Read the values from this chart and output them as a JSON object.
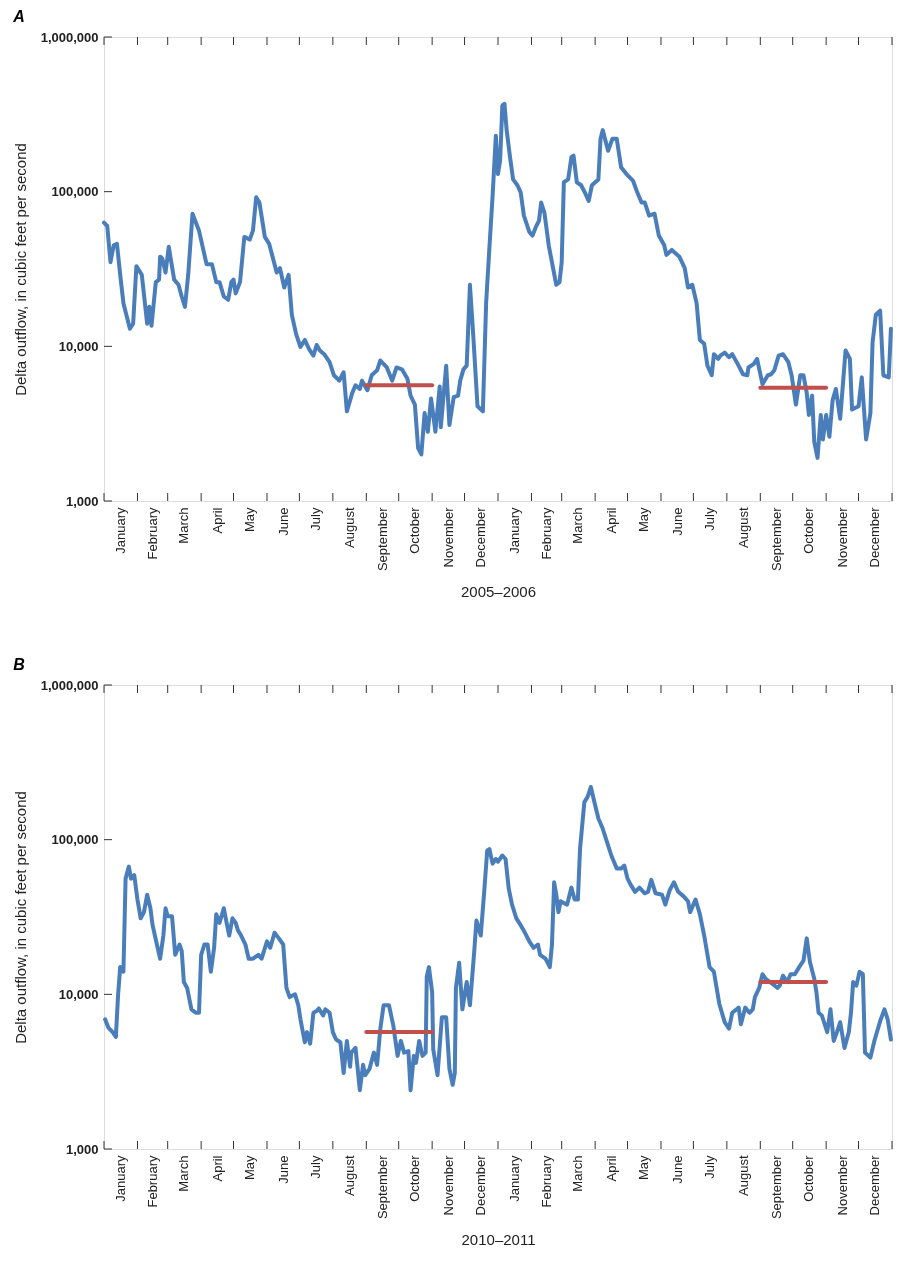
{
  "chart_data": [
    {
      "type": "line",
      "title": "A",
      "xlabel": "2005–2006",
      "ylabel": "Delta outflow, in cubic feet per second",
      "log": true,
      "grid": false,
      "x": [
        "2005-01-01",
        "2005-01-04",
        "2005-01-07",
        "2005-01-10",
        "2005-01-13",
        "2005-01-16",
        "2005-01-19",
        "2005-01-25",
        "2005-01-28",
        "2005-01-31",
        "2005-02-05",
        "2005-02-10",
        "2005-02-12",
        "2005-02-14",
        "2005-02-18",
        "2005-02-21",
        "2005-02-22",
        "2005-02-24",
        "2005-02-27",
        "2005-03-02",
        "2005-03-07",
        "2005-03-11",
        "2005-03-14",
        "2005-03-17",
        "2005-03-20",
        "2005-03-24",
        "2005-03-30",
        "2005-04-06",
        "2005-04-11",
        "2005-04-15",
        "2005-04-18",
        "2005-04-22",
        "2005-04-26",
        "2005-04-29",
        "2005-05-01",
        "2005-05-03",
        "2005-05-07",
        "2005-05-11",
        "2005-05-16",
        "2005-05-19",
        "2005-05-22",
        "2005-05-25",
        "2005-05-30",
        "2005-06-03",
        "2005-06-07",
        "2005-06-10",
        "2005-06-13",
        "2005-06-17",
        "2005-06-21",
        "2005-06-24",
        "2005-06-28",
        "2005-07-02",
        "2005-07-06",
        "2005-07-10",
        "2005-07-14",
        "2005-07-17",
        "2005-07-20",
        "2005-07-24",
        "2005-07-29",
        "2005-08-02",
        "2005-08-07",
        "2005-08-11",
        "2005-08-14",
        "2005-08-19",
        "2005-08-22",
        "2005-08-26",
        "2005-08-28",
        "2005-09-02",
        "2005-09-06",
        "2005-09-11",
        "2005-09-14",
        "2005-09-20",
        "2005-09-25",
        "2005-09-29",
        "2005-10-04",
        "2005-10-09",
        "2005-10-12",
        "2005-10-16",
        "2005-10-19",
        "2005-10-22",
        "2005-10-25",
        "2005-10-28",
        "2005-10-31",
        "2005-11-04",
        "2005-11-08",
        "2005-11-09",
        "2005-11-14",
        "2005-11-17",
        "2005-11-21",
        "2005-11-25",
        "2005-11-27",
        "2005-11-30",
        "2005-12-03",
        "2005-12-06",
        "2005-12-09",
        "2005-12-13",
        "2005-12-18",
        "2005-12-21",
        "2005-12-24",
        "2005-12-27",
        "2005-12-30",
        "2006-01-01",
        "2006-01-03",
        "2006-01-05",
        "2006-01-07",
        "2006-01-09",
        "2006-01-12",
        "2006-01-15",
        "2006-01-19",
        "2006-01-22",
        "2006-01-25",
        "2006-01-30",
        "2006-02-02",
        "2006-02-05",
        "2006-02-08",
        "2006-02-10",
        "2006-02-13",
        "2006-02-17",
        "2006-02-21",
        "2006-02-24",
        "2006-02-27",
        "2006-03-01",
        "2006-03-03",
        "2006-03-07",
        "2006-03-10",
        "2006-03-12",
        "2006-03-15",
        "2006-03-19",
        "2006-03-23",
        "2006-03-26",
        "2006-03-29",
        "2006-04-04",
        "2006-04-06",
        "2006-04-08",
        "2006-04-13",
        "2006-04-17",
        "2006-04-21",
        "2006-04-25",
        "2006-04-30",
        "2006-05-06",
        "2006-05-10",
        "2006-05-14",
        "2006-05-17",
        "2006-05-21",
        "2006-05-26",
        "2006-05-30",
        "2006-06-04",
        "2006-06-06",
        "2006-06-11",
        "2006-06-18",
        "2006-06-23",
        "2006-06-26",
        "2006-06-30",
        "2006-07-04",
        "2006-07-07",
        "2006-07-11",
        "2006-07-14",
        "2006-07-18",
        "2006-07-20",
        "2006-07-24",
        "2006-07-26",
        "2006-07-30",
        "2006-08-03",
        "2006-08-06",
        "2006-08-11",
        "2006-08-16",
        "2006-08-20",
        "2006-08-21",
        "2006-08-26",
        "2006-08-29",
        "2006-09-03",
        "2006-09-08",
        "2006-09-11",
        "2006-09-14",
        "2006-09-18",
        "2006-09-22",
        "2006-09-27",
        "2006-09-30",
        "2006-10-04",
        "2006-10-08",
        "2006-10-11",
        "2006-10-14",
        "2006-10-16",
        "2006-10-19",
        "2006-10-21",
        "2006-10-24",
        "2006-10-27",
        "2006-10-29",
        "2006-11-01",
        "2006-11-04",
        "2006-11-07",
        "2006-11-10",
        "2006-11-14",
        "2006-11-19",
        "2006-11-23",
        "2006-11-25",
        "2006-12-01",
        "2006-12-04",
        "2006-12-08",
        "2006-12-12",
        "2006-12-14",
        "2006-12-17",
        "2006-12-21",
        "2006-12-24",
        "2006-12-29",
        "2006-12-31"
      ],
      "series": [
        {
          "color": "#4a7ebb",
          "values": [
            63000,
            60000,
            35000,
            45000,
            46000,
            29000,
            19000,
            13000,
            14000,
            33000,
            29000,
            14000,
            18000,
            13600,
            26000,
            27000,
            38000,
            37000,
            30000,
            44000,
            27000,
            25000,
            21000,
            18000,
            29000,
            72000,
            56000,
            34000,
            34000,
            26000,
            26000,
            21000,
            20000,
            26000,
            27000,
            22000,
            26000,
            51000,
            49000,
            56000,
            92000,
            85000,
            51000,
            46000,
            36000,
            30000,
            32000,
            24000,
            29000,
            16000,
            12000,
            9900,
            11000,
            9600,
            8700,
            10200,
            9400,
            8900,
            7900,
            6500,
            6000,
            6800,
            3800,
            5000,
            5600,
            5300,
            6000,
            5200,
            6500,
            7000,
            8100,
            7300,
            6000,
            7300,
            7100,
            6200,
            4800,
            4200,
            2200,
            2000,
            3700,
            2800,
            4600,
            2800,
            5500,
            3000,
            7500,
            3100,
            4700,
            4800,
            6000,
            7100,
            7500,
            25000,
            12000,
            4100,
            3800,
            19000,
            43000,
            94000,
            230000,
            130000,
            160000,
            360000,
            370000,
            250000,
            170000,
            120000,
            110000,
            99000,
            70000,
            55000,
            52000,
            59000,
            65000,
            85000,
            73000,
            45000,
            32000,
            25000,
            26000,
            35000,
            115000,
            120000,
            167000,
            171000,
            115000,
            110000,
            97000,
            87000,
            110000,
            120000,
            220000,
            250000,
            184000,
            220000,
            220000,
            144000,
            130000,
            118000,
            99000,
            85000,
            85000,
            70000,
            72000,
            52000,
            45000,
            39000,
            42000,
            38000,
            32000,
            24000,
            25000,
            19000,
            11000,
            10400,
            7500,
            6500,
            8900,
            8300,
            8700,
            9100,
            8500,
            8900,
            7700,
            6600,
            6500,
            7300,
            7700,
            8300,
            5700,
            6500,
            6600,
            7000,
            8700,
            8900,
            7900,
            6500,
            4200,
            6500,
            6500,
            5000,
            3600,
            4800,
            2400,
            1900,
            3600,
            2500,
            3600,
            2600,
            4500,
            5300,
            3400,
            9400,
            8300,
            3900,
            4100,
            6300,
            2500,
            3700,
            10600,
            16000,
            17000,
            6500,
            6300,
            13000
          ]
        },
        {
          "color": "#c0504d",
          "x": [
            "2005-09-01",
            "2005-11-01"
          ],
          "values": [
            5600,
            5600
          ]
        },
        {
          "color": "#c0504d",
          "x": [
            "2006-09-01",
            "2006-11-01"
          ],
          "values": [
            5400,
            5400
          ]
        }
      ],
      "xlim": [
        "2005-01-01",
        "2007-01-01"
      ],
      "xticks": [
        {
          "value": "2005-01-01",
          "label": null
        },
        {
          "value": "2005-02-01",
          "label": null
        },
        {
          "value": "2005-03-01",
          "label": null
        },
        {
          "value": "2005-04-01",
          "label": null
        },
        {
          "value": "2005-05-01",
          "label": null
        },
        {
          "value": "2005-06-01",
          "label": null
        },
        {
          "value": "2005-07-01",
          "label": null
        },
        {
          "value": "2005-08-01",
          "label": null
        },
        {
          "value": "2005-09-01",
          "label": null
        },
        {
          "value": "2005-10-01",
          "label": null
        },
        {
          "value": "2005-11-01",
          "label": null
        },
        {
          "value": "2005-12-01",
          "label": null
        },
        {
          "value": "2006-01-01",
          "label": null
        },
        {
          "value": "2006-02-01",
          "label": null
        },
        {
          "value": "2006-03-01",
          "label": null
        },
        {
          "value": "2006-04-01",
          "label": null
        },
        {
          "value": "2006-05-01",
          "label": null
        },
        {
          "value": "2006-06-01",
          "label": null
        },
        {
          "value": "2006-07-01",
          "label": null
        },
        {
          "value": "2006-08-01",
          "label": null
        },
        {
          "value": "2006-09-01",
          "label": null
        },
        {
          "value": "2006-10-01",
          "label": null
        },
        {
          "value": "2006-11-01",
          "label": null
        },
        {
          "value": "2006-12-01",
          "label": null
        },
        {
          "value": "2007-01-01",
          "label": null
        },
        {
          "value": "2005-01-16",
          "label": "January"
        },
        {
          "value": "2005-02-15",
          "label": "February"
        },
        {
          "value": "2005-03-16",
          "label": "March"
        },
        {
          "value": "2005-04-16",
          "label": "April"
        },
        {
          "value": "2005-05-16",
          "label": "May"
        },
        {
          "value": "2005-06-16",
          "label": "June"
        },
        {
          "value": "2005-07-16",
          "label": "July"
        },
        {
          "value": "2005-08-16",
          "label": "August"
        },
        {
          "value": "2005-09-16",
          "label": "September"
        },
        {
          "value": "2005-10-16",
          "label": "October"
        },
        {
          "value": "2005-11-16",
          "label": "November"
        },
        {
          "value": "2005-12-16",
          "label": "December"
        },
        {
          "value": "2006-01-16",
          "label": "January"
        },
        {
          "value": "2006-02-15",
          "label": "February"
        },
        {
          "value": "2006-03-16",
          "label": "March"
        },
        {
          "value": "2006-04-16",
          "label": "April"
        },
        {
          "value": "2006-05-16",
          "label": "May"
        },
        {
          "value": "2006-06-16",
          "label": "June"
        },
        {
          "value": "2006-07-16",
          "label": "July"
        },
        {
          "value": "2006-08-16",
          "label": "August"
        },
        {
          "value": "2006-09-16",
          "label": "September"
        },
        {
          "value": "2006-10-16",
          "label": "October"
        },
        {
          "value": "2006-11-16",
          "label": "November"
        },
        {
          "value": "2006-12-16",
          "label": "December"
        }
      ],
      "ylim": [
        1000,
        1000000
      ],
      "yticks": [
        {
          "value": 1000,
          "label": "1,000"
        },
        {
          "value": 10000,
          "label": "10,000"
        },
        {
          "value": 100000,
          "label": "100,000"
        },
        {
          "value": 1000000,
          "label": "1,000,000"
        }
      ]
    },
    {
      "type": "line",
      "title": "B",
      "xlabel": "2010–2011",
      "ylabel": "Delta outflow, in cubic feet per second",
      "log": true,
      "grid": false,
      "x": [
        "2010-01-02",
        "2010-01-05",
        "2010-01-09",
        "2010-01-12",
        "2010-01-14",
        "2010-01-16",
        "2010-01-19",
        "2010-01-21",
        "2010-01-24",
        "2010-01-26",
        "2010-01-29",
        "2010-02-01",
        "2010-02-04",
        "2010-02-07",
        "2010-02-10",
        "2010-02-13",
        "2010-02-15",
        "2010-02-19",
        "2010-02-22",
        "2010-02-25",
        "2010-02-27",
        "2010-03-01",
        "2010-03-05",
        "2010-03-08",
        "2010-03-12",
        "2010-03-14",
        "2010-03-16",
        "2010-03-19",
        "2010-03-23",
        "2010-03-27",
        "2010-03-30",
        "2010-04-01",
        "2010-04-04",
        "2010-04-07",
        "2010-04-10",
        "2010-04-13",
        "2010-04-15",
        "2010-04-18",
        "2010-04-22",
        "2010-04-25",
        "2010-04-27",
        "2010-04-30",
        "2010-05-03",
        "2010-05-05",
        "2010-05-08",
        "2010-05-12",
        "2010-05-15",
        "2010-05-19",
        "2010-05-24",
        "2010-05-27",
        "2010-06-01",
        "2010-06-04",
        "2010-06-08",
        "2010-06-12",
        "2010-06-16",
        "2010-06-19",
        "2010-06-22",
        "2010-06-27",
        "2010-06-30",
        "2010-07-02",
        "2010-07-06",
        "2010-07-08",
        "2010-07-11",
        "2010-07-14",
        "2010-07-17",
        "2010-07-19",
        "2010-07-23",
        "2010-07-25",
        "2010-07-29",
        "2010-08-01",
        "2010-08-04",
        "2010-08-08",
        "2010-08-11",
        "2010-08-14",
        "2010-08-17",
        "2010-08-18",
        "2010-08-22",
        "2010-08-24",
        "2010-08-26",
        "2010-08-29",
        "2010-08-31",
        "2010-09-04",
        "2010-09-08",
        "2010-09-11",
        "2010-09-14",
        "2010-09-17",
        "2010-09-22",
        "2010-09-26",
        "2010-09-30",
        "2010-10-03",
        "2010-10-06",
        "2010-10-10",
        "2010-10-12",
        "2010-10-15",
        "2010-10-17",
        "2010-10-20",
        "2010-10-23",
        "2010-10-26",
        "2010-10-27",
        "2010-10-29",
        "2010-11-01",
        "2010-11-02",
        "2010-11-06",
        "2010-11-10",
        "2010-11-14",
        "2010-11-17",
        "2010-11-20",
        "2010-11-22",
        "2010-11-23",
        "2010-11-26",
        "2010-11-29",
        "2010-12-03",
        "2010-12-06",
        "2010-12-10",
        "2010-12-12",
        "2010-12-16",
        "2010-12-19",
        "2010-12-22",
        "2010-12-24",
        "2010-12-27",
        "2010-12-30",
        "2011-01-01",
        "2011-01-05",
        "2011-01-08",
        "2011-01-11",
        "2011-01-14",
        "2011-01-18",
        "2011-01-22",
        "2011-01-26",
        "2011-01-30",
        "2011-02-03",
        "2011-02-07",
        "2011-02-09",
        "2011-02-14",
        "2011-02-18",
        "2011-02-20",
        "2011-02-22",
        "2011-02-24",
        "2011-02-26",
        "2011-02-28",
        "2011-03-06",
        "2011-03-10",
        "2011-03-13",
        "2011-03-16",
        "2011-03-18",
        "2011-03-22",
        "2011-03-25",
        "2011-03-28",
        "2011-04-01",
        "2011-04-04",
        "2011-04-08",
        "2011-04-16",
        "2011-04-21",
        "2011-04-25",
        "2011-04-28",
        "2011-05-01",
        "2011-05-04",
        "2011-05-08",
        "2011-05-12",
        "2011-05-17",
        "2011-05-20",
        "2011-05-23",
        "2011-05-27",
        "2011-06-02",
        "2011-06-05",
        "2011-06-09",
        "2011-06-13",
        "2011-06-17",
        "2011-06-22",
        "2011-06-26",
        "2011-06-28",
        "2011-07-03",
        "2011-07-07",
        "2011-07-11",
        "2011-07-16",
        "2011-07-20",
        "2011-07-25",
        "2011-07-30",
        "2011-08-03",
        "2011-08-06",
        "2011-08-12",
        "2011-08-14",
        "2011-08-18",
        "2011-08-22",
        "2011-08-25",
        "2011-08-27",
        "2011-08-31",
        "2011-09-03",
        "2011-09-06",
        "2011-09-12",
        "2011-09-17",
        "2011-09-19",
        "2011-09-22",
        "2011-09-26",
        "2011-09-29",
        "2011-10-03",
        "2011-10-07",
        "2011-10-11",
        "2011-10-14",
        "2011-10-17",
        "2011-10-21",
        "2011-10-23",
        "2011-10-25",
        "2011-10-28",
        "2011-11-02",
        "2011-11-05",
        "2011-11-08",
        "2011-11-11",
        "2011-11-14",
        "2011-11-18",
        "2011-11-22",
        "2011-11-24",
        "2011-11-26",
        "2011-11-29",
        "2011-12-02",
        "2011-12-05",
        "2011-12-07",
        "2011-12-12",
        "2011-12-16",
        "2011-12-21",
        "2011-12-25",
        "2011-12-28",
        "2011-12-31"
      ],
      "series": [
        {
          "color": "#4a7ebb",
          "values": [
            6900,
            6100,
            5700,
            5300,
            9800,
            15000,
            14000,
            56000,
            67000,
            56000,
            59000,
            41000,
            31000,
            34000,
            44000,
            36000,
            28000,
            21000,
            17000,
            24000,
            36000,
            32000,
            32000,
            18000,
            21000,
            19000,
            12000,
            11000,
            8000,
            7600,
            7600,
            18000,
            21000,
            21000,
            14000,
            20000,
            33000,
            29000,
            36000,
            28000,
            24000,
            31000,
            29000,
            26000,
            24000,
            21000,
            17000,
            17000,
            18000,
            17000,
            22000,
            20000,
            25000,
            23000,
            21000,
            11000,
            9600,
            10000,
            8500,
            6900,
            4900,
            5700,
            4800,
            7600,
            7800,
            8100,
            7300,
            8000,
            7600,
            5700,
            5100,
            4900,
            3100,
            5000,
            3400,
            4200,
            4500,
            3300,
            2400,
            3500,
            3000,
            3300,
            4200,
            3500,
            6000,
            8500,
            8500,
            6300,
            4000,
            5000,
            4200,
            4300,
            2400,
            4000,
            3600,
            5000,
            4000,
            4200,
            13000,
            15000,
            10300,
            4400,
            3000,
            7100,
            7100,
            3300,
            2600,
            3100,
            11000,
            16000,
            8000,
            12000,
            8500,
            19000,
            30000,
            24000,
            44000,
            85000,
            87000,
            70000,
            75000,
            72000,
            79000,
            75000,
            48000,
            38000,
            31000,
            28000,
            25000,
            22000,
            20000,
            21000,
            18000,
            17000,
            15000,
            21000,
            53000,
            44000,
            34000,
            40000,
            38000,
            49000,
            41000,
            41000,
            87000,
            175000,
            189000,
            219000,
            167000,
            137000,
            118000,
            79000,
            65000,
            65000,
            68000,
            56000,
            51000,
            46000,
            49000,
            45000,
            46000,
            55000,
            45000,
            44000,
            38000,
            47000,
            53000,
            46000,
            43000,
            40000,
            34000,
            41000,
            33000,
            24000,
            15000,
            14000,
            8700,
            6600,
            6000,
            7600,
            8200,
            6400,
            8200,
            7600,
            8000,
            9600,
            11000,
            13500,
            12600,
            11700,
            11000,
            11400,
            13200,
            12000,
            13500,
            13500,
            15000,
            16500,
            23000,
            16100,
            12600,
            10300,
            7600,
            7300,
            5700,
            8000,
            5000,
            5700,
            6600,
            4500,
            5700,
            7600,
            12000,
            11400,
            14000,
            13500,
            4200,
            3900,
            5100,
            6700,
            8000,
            6900,
            5100
          ]
        },
        {
          "color": "#c0504d",
          "x": [
            "2010-09-01",
            "2010-11-01"
          ],
          "values": [
            5700,
            5700
          ]
        },
        {
          "color": "#c0504d",
          "x": [
            "2011-09-01",
            "2011-11-01"
          ],
          "values": [
            12000,
            12000
          ]
        }
      ],
      "xlim": [
        "2010-01-01",
        "2012-01-01"
      ],
      "xticks": [
        {
          "value": "2010-01-01",
          "label": null
        },
        {
          "value": "2010-02-01",
          "label": null
        },
        {
          "value": "2010-03-01",
          "label": null
        },
        {
          "value": "2010-04-01",
          "label": null
        },
        {
          "value": "2010-05-01",
          "label": null
        },
        {
          "value": "2010-06-01",
          "label": null
        },
        {
          "value": "2010-07-01",
          "label": null
        },
        {
          "value": "2010-08-01",
          "label": null
        },
        {
          "value": "2010-09-01",
          "label": null
        },
        {
          "value": "2010-10-01",
          "label": null
        },
        {
          "value": "2010-11-01",
          "label": null
        },
        {
          "value": "2010-12-01",
          "label": null
        },
        {
          "value": "2011-01-01",
          "label": null
        },
        {
          "value": "2011-02-01",
          "label": null
        },
        {
          "value": "2011-03-01",
          "label": null
        },
        {
          "value": "2011-04-01",
          "label": null
        },
        {
          "value": "2011-05-01",
          "label": null
        },
        {
          "value": "2011-06-01",
          "label": null
        },
        {
          "value": "2011-07-01",
          "label": null
        },
        {
          "value": "2011-08-01",
          "label": null
        },
        {
          "value": "2011-09-01",
          "label": null
        },
        {
          "value": "2011-10-01",
          "label": null
        },
        {
          "value": "2011-11-01",
          "label": null
        },
        {
          "value": "2011-12-01",
          "label": null
        },
        {
          "value": "2012-01-01",
          "label": null
        },
        {
          "value": "2010-01-16",
          "label": "January"
        },
        {
          "value": "2010-02-15",
          "label": "February"
        },
        {
          "value": "2010-03-16",
          "label": "March"
        },
        {
          "value": "2010-04-16",
          "label": "April"
        },
        {
          "value": "2010-05-16",
          "label": "May"
        },
        {
          "value": "2010-06-16",
          "label": "June"
        },
        {
          "value": "2010-07-16",
          "label": "July"
        },
        {
          "value": "2010-08-16",
          "label": "August"
        },
        {
          "value": "2010-09-16",
          "label": "September"
        },
        {
          "value": "2010-10-16",
          "label": "October"
        },
        {
          "value": "2010-11-16",
          "label": "November"
        },
        {
          "value": "2010-12-16",
          "label": "December"
        },
        {
          "value": "2011-01-16",
          "label": "January"
        },
        {
          "value": "2011-02-15",
          "label": "February"
        },
        {
          "value": "2011-03-16",
          "label": "March"
        },
        {
          "value": "2011-04-16",
          "label": "April"
        },
        {
          "value": "2011-05-16",
          "label": "May"
        },
        {
          "value": "2011-06-16",
          "label": "June"
        },
        {
          "value": "2011-07-16",
          "label": "July"
        },
        {
          "value": "2011-08-16",
          "label": "August"
        },
        {
          "value": "2011-09-16",
          "label": "September"
        },
        {
          "value": "2011-10-16",
          "label": "October"
        },
        {
          "value": "2011-11-16",
          "label": "November"
        },
        {
          "value": "2011-12-16",
          "label": "December"
        }
      ],
      "ylim": [
        1000,
        1000000
      ],
      "yticks": [
        {
          "value": 1000,
          "label": "1,000"
        },
        {
          "value": 10000,
          "label": "10,000"
        },
        {
          "value": 100000,
          "label": "100,000"
        },
        {
          "value": 1000000,
          "label": "1,000,000"
        }
      ]
    }
  ]
}
